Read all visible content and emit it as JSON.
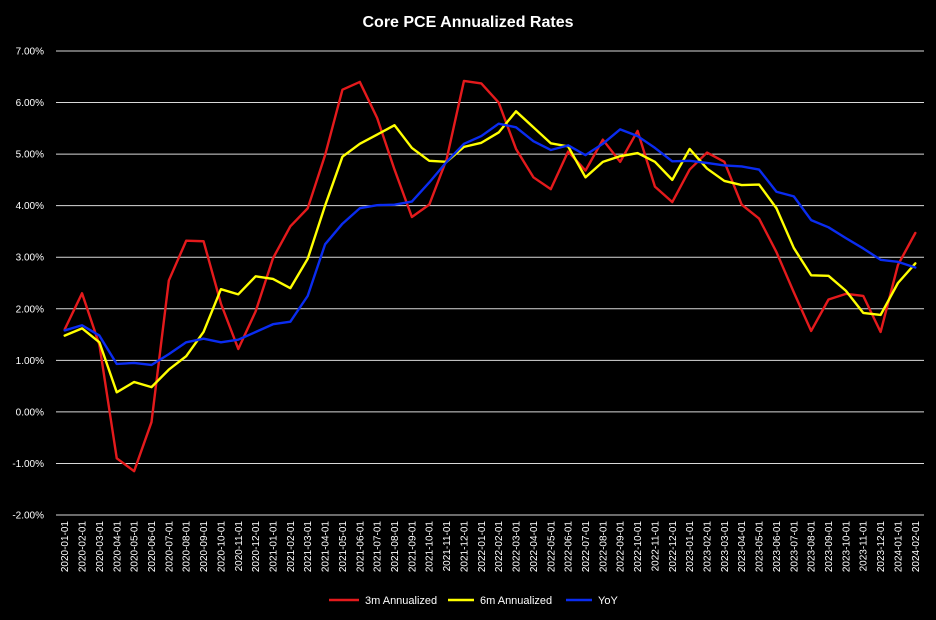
{
  "chart_data": {
    "type": "line",
    "title": "Core PCE Annualized Rates",
    "xlabel": "",
    "ylabel": "",
    "ylim": [
      -2,
      7
    ],
    "yticks": [
      -2,
      -1,
      0,
      1,
      2,
      3,
      4,
      5,
      6,
      7
    ],
    "ytick_labels": [
      "-2.00%",
      "-1.00%",
      "0.00%",
      "1.00%",
      "2.00%",
      "3.00%",
      "4.00%",
      "5.00%",
      "6.00%",
      "7.00%"
    ],
    "grid": true,
    "legend": "bottom",
    "background": "#000000",
    "x": [
      "2020-01-01",
      "2020-02-01",
      "2020-03-01",
      "2020-04-01",
      "2020-05-01",
      "2020-06-01",
      "2020-07-01",
      "2020-08-01",
      "2020-09-01",
      "2020-10-01",
      "2020-11-01",
      "2020-12-01",
      "2021-01-01",
      "2021-02-01",
      "2021-03-01",
      "2021-04-01",
      "2021-05-01",
      "2021-06-01",
      "2021-07-01",
      "2021-08-01",
      "2021-09-01",
      "2021-10-01",
      "2021-11-01",
      "2021-12-01",
      "2022-01-01",
      "2022-02-01",
      "2022-03-01",
      "2022-04-01",
      "2022-05-01",
      "2022-06-01",
      "2022-07-01",
      "2022-08-01",
      "2022-09-01",
      "2022-10-01",
      "2022-11-01",
      "2022-12-01",
      "2023-01-01",
      "2023-02-01",
      "2023-03-01",
      "2023-04-01",
      "2023-05-01",
      "2023-06-01",
      "2023-07-01",
      "2023-08-01",
      "2023-09-01",
      "2023-10-01",
      "2023-11-01",
      "2023-12-01",
      "2024-01-01",
      "2024-02-01"
    ],
    "series": [
      {
        "name": "3m Annualized",
        "color": "#e41a1c",
        "values": [
          1.6,
          2.3,
          1.3,
          -0.9,
          -1.15,
          -0.2,
          2.55,
          3.32,
          3.31,
          2.1,
          1.22,
          1.95,
          2.98,
          3.6,
          3.95,
          4.98,
          6.25,
          6.4,
          5.7,
          4.7,
          3.78,
          4.02,
          4.9,
          6.42,
          6.37,
          6.0,
          5.1,
          4.55,
          4.32,
          5.05,
          4.68,
          5.28,
          4.85,
          5.45,
          4.37,
          4.07,
          4.7,
          5.03,
          4.85,
          4.02,
          3.75,
          3.1,
          2.32,
          1.57,
          2.18,
          2.29,
          2.25,
          1.55,
          2.85,
          3.47
        ]
      },
      {
        "name": "6m Annualized",
        "color": "#ffff00",
        "values": [
          1.48,
          1.62,
          1.35,
          0.38,
          0.58,
          0.48,
          0.82,
          1.08,
          1.55,
          2.38,
          2.28,
          2.63,
          2.58,
          2.4,
          2.97,
          4.0,
          4.95,
          5.2,
          5.38,
          5.56,
          5.12,
          4.87,
          4.85,
          5.14,
          5.22,
          5.42,
          5.83,
          5.52,
          5.21,
          5.15,
          4.55,
          4.85,
          4.96,
          5.02,
          4.85,
          4.5,
          5.1,
          4.72,
          4.48,
          4.4,
          4.41,
          3.95,
          3.18,
          2.65,
          2.64,
          2.35,
          1.92,
          1.88,
          2.5,
          2.88
        ]
      },
      {
        "name": "YoY",
        "color": "#0a2cf0",
        "values": [
          1.58,
          1.68,
          1.48,
          0.93,
          0.95,
          0.91,
          1.12,
          1.35,
          1.42,
          1.35,
          1.4,
          1.55,
          1.7,
          1.75,
          2.25,
          3.25,
          3.65,
          3.95,
          4.01,
          4.02,
          4.08,
          4.45,
          4.85,
          5.2,
          5.35,
          5.59,
          5.52,
          5.25,
          5.08,
          5.17,
          4.98,
          5.2,
          5.48,
          5.35,
          5.12,
          4.86,
          4.87,
          4.83,
          4.78,
          4.76,
          4.7,
          4.27,
          4.18,
          3.72,
          3.58,
          3.37,
          3.17,
          2.95,
          2.91,
          2.8
        ]
      }
    ]
  }
}
